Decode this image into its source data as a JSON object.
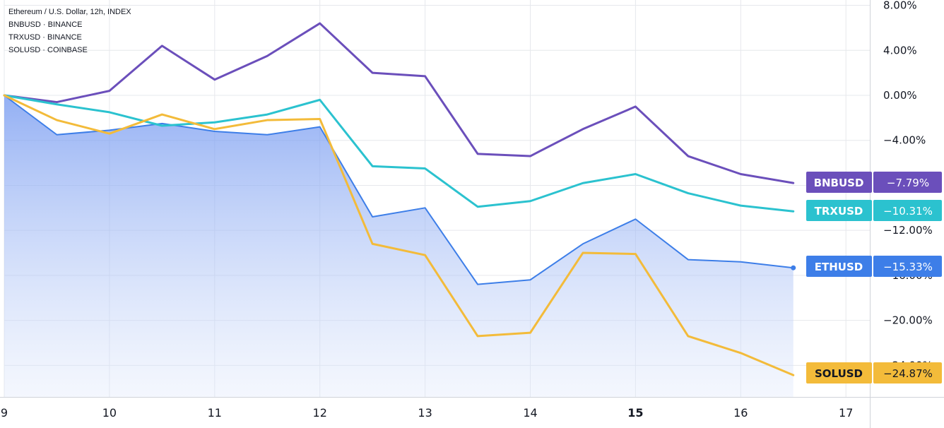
{
  "legend": {
    "line1": "Ethereum / U.S. Dollar, 12h, INDEX",
    "line2": "BNBUSD · BINANCE",
    "line3": "TRXUSD · BINANCE",
    "line4": "SOLUSD · COINBASE"
  },
  "chart_data": {
    "type": "line",
    "x": [
      9,
      9.5,
      10,
      10.5,
      11,
      11.5,
      12,
      12.5,
      13,
      13.5,
      14,
      14.5,
      15,
      15.5,
      16,
      16.5
    ],
    "x_ticks": [
      "9",
      "10",
      "11",
      "12",
      "13",
      "14",
      "15",
      "16",
      "17"
    ],
    "x_tick_values": [
      9,
      10,
      11,
      12,
      13,
      14,
      15,
      16,
      17
    ],
    "x_bold_tick": "15",
    "y_ticks": [
      "8.00%",
      "4.00%",
      "0.00%",
      "−4.00%",
      "−12.00%",
      "−20.00%"
    ],
    "y_tick_values": [
      8,
      4,
      0,
      -4,
      -12,
      -20
    ],
    "y_partial_ticks": [
      "−16.00%",
      "−24.00%"
    ],
    "xlim": [
      9,
      17.05
    ],
    "ylim": [
      -27,
      8
    ],
    "series": [
      {
        "name": "BNBUSD",
        "color": "#6b4fbb",
        "last_label": "−7.79%",
        "values": [
          0,
          -0.6,
          0.4,
          4.4,
          1.4,
          3.5,
          6.4,
          2.0,
          1.7,
          -5.2,
          -5.4,
          -3.0,
          -1.0,
          -5.4,
          -7.0,
          -7.79
        ]
      },
      {
        "name": "TRXUSD",
        "color": "#2bc2cf",
        "last_label": "−10.31%",
        "values": [
          0,
          -0.8,
          -1.5,
          -2.7,
          -2.4,
          -1.7,
          -0.4,
          -6.3,
          -6.5,
          -9.9,
          -9.4,
          -7.8,
          -7.0,
          -8.7,
          -9.8,
          -10.31
        ]
      },
      {
        "name": "ETHUSD",
        "color": "#3d7ee8",
        "last_label": "−15.33%",
        "area": true,
        "values": [
          0,
          -3.5,
          -3.1,
          -2.5,
          -3.2,
          -3.5,
          -2.8,
          -10.8,
          -10.0,
          -16.8,
          -16.4,
          -13.2,
          -11.0,
          -14.6,
          -14.8,
          -15.33
        ]
      },
      {
        "name": "SOLUSD",
        "color": "#f3bb3a",
        "last_label": "−24.87%",
        "values": [
          0,
          -2.2,
          -3.4,
          -1.7,
          -3.0,
          -2.2,
          -2.1,
          -13.2,
          -14.2,
          -21.4,
          -21.1,
          -14.0,
          -14.1,
          -21.4,
          -22.9,
          -24.87
        ]
      }
    ]
  }
}
